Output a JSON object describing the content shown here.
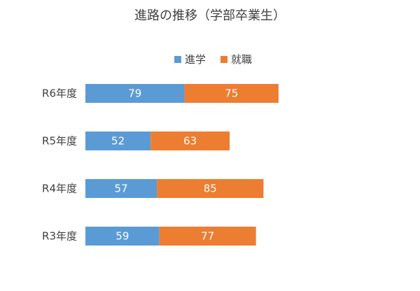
{
  "chart_data": {
    "type": "bar",
    "orientation": "horizontal",
    "stacked": true,
    "title": "進路の推移（学部卒業生）",
    "categories": [
      "R6年度",
      "R5年度",
      "R4年度",
      "R3年度"
    ],
    "series": [
      {
        "name": "進学",
        "color": "#5b9bd5",
        "values": [
          79,
          52,
          57,
          59
        ]
      },
      {
        "name": "就職",
        "color": "#ed7d31",
        "values": [
          75,
          63,
          85,
          77
        ]
      }
    ],
    "xlim": [
      0,
      240
    ],
    "grid": false,
    "legend_position": "top"
  }
}
